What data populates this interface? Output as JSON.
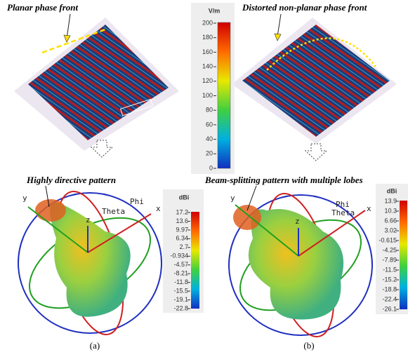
{
  "labels": {
    "top_left": "Planar phase front",
    "top_right": "Distorted non-planar phase front",
    "bottom_left": "Highly directive pattern",
    "bottom_right": "Beam-splitting pattern with multiple lobes"
  },
  "field_scale": {
    "unit": "V/m",
    "ticks": [
      200,
      180,
      160,
      140,
      120,
      100,
      80,
      60,
      40,
      20,
      0
    ]
  },
  "pattern_a": {
    "unit": "dBi",
    "ticks": [
      17.2,
      13.6,
      9.97,
      6.34,
      2.7,
      -0.934,
      -4.57,
      -8.21,
      -11.8,
      -15.5,
      -19.1,
      -22.8
    ],
    "axes": {
      "x": "x",
      "y": "y",
      "z": "z",
      "phi": "Phi",
      "theta": "Theta"
    },
    "caption": "(a)"
  },
  "pattern_b": {
    "unit": "dBi",
    "ticks": [
      13.9,
      10.3,
      6.66,
      3.02,
      -0.615,
      -4.25,
      -7.89,
      -11.5,
      -15.2,
      -18.8,
      -22.4,
      -26.1
    ],
    "axes": {
      "x": "x",
      "y": "y",
      "z": "z",
      "phi": "Phi",
      "theta": "Theta"
    },
    "caption": "(b)"
  }
}
